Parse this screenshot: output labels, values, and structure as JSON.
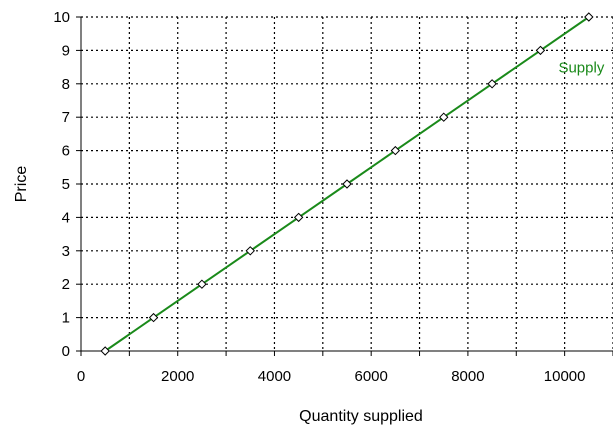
{
  "chart_data": {
    "type": "line",
    "xlabel": "Quantity supplied",
    "ylabel": "Price",
    "xlim": [
      0,
      11000
    ],
    "ylim": [
      0,
      10
    ],
    "x_ticks": [
      0,
      2000,
      4000,
      6000,
      8000,
      10000
    ],
    "x_tick_labels": [
      "0",
      "2000",
      "4000",
      "6000",
      "8000",
      "10000"
    ],
    "y_ticks": [
      0,
      1,
      2,
      3,
      4,
      5,
      6,
      7,
      8,
      9,
      10
    ],
    "y_tick_labels": [
      "0",
      "1",
      "2",
      "3",
      "4",
      "5",
      "6",
      "7",
      "8",
      "9",
      "10"
    ],
    "grid": true,
    "series": [
      {
        "name": "Supply",
        "color": "#1a8a1a",
        "marker": "diamond",
        "x": [
          500,
          1500,
          2500,
          3500,
          4500,
          5500,
          6500,
          7500,
          8500,
          9500,
          10500
        ],
        "y": [
          0,
          1,
          2,
          3,
          4,
          5,
          6,
          7,
          8,
          9,
          10
        ]
      }
    ]
  }
}
